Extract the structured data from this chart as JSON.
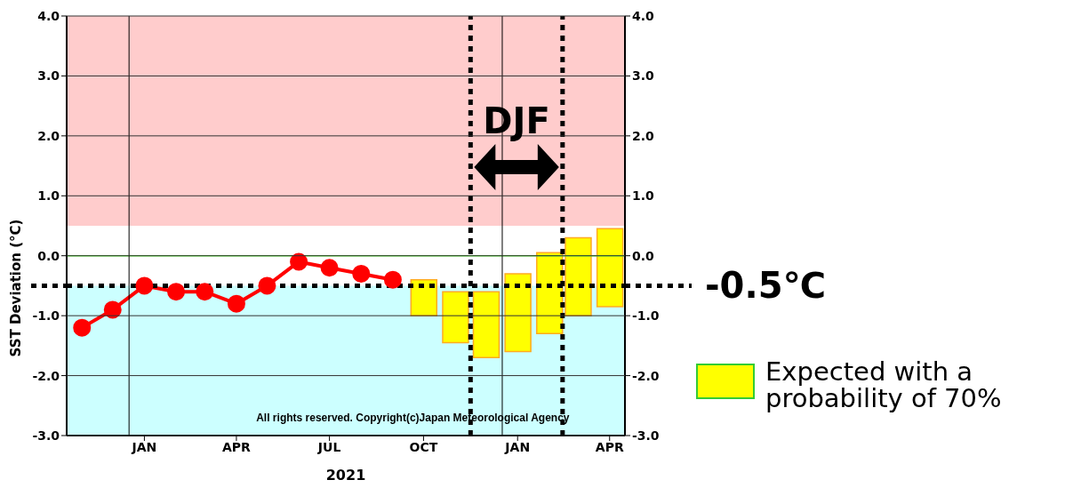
{
  "chart_data": {
    "type": "line",
    "ylabel": "SST Deviation (°C)",
    "xlabel": "2021",
    "xlim": [
      "2020-11-01",
      "2022-05-01"
    ],
    "xticks": [
      {
        "value": "2021-01-16",
        "label": "JAN"
      },
      {
        "value": "2021-04-16",
        "label": "APR"
      },
      {
        "value": "2021-07-16",
        "label": "JUL"
      },
      {
        "value": "2021-10-16",
        "label": "OCT"
      },
      {
        "value": "2022-01-16",
        "label": "JAN"
      },
      {
        "value": "2022-04-16",
        "label": "APR"
      }
    ],
    "ylim": [
      -3,
      4
    ],
    "yticks": [
      {
        "value": -3,
        "label": "-3.0"
      },
      {
        "value": -2,
        "label": "-2.0"
      },
      {
        "value": -1,
        "label": "-1.0"
      },
      {
        "value": 0,
        "label": "0.0"
      },
      {
        "value": 1,
        "label": "1.0"
      },
      {
        "value": 2,
        "label": "2.0"
      },
      {
        "value": 3,
        "label": "3.0"
      },
      {
        "value": 4,
        "label": "4.0"
      }
    ],
    "y2lim": [
      -3,
      4
    ],
    "y2ticks": [
      {
        "value": -3,
        "label": "-3.0"
      },
      {
        "value": -2,
        "label": "-2.0"
      },
      {
        "value": -1,
        "label": "-1.0"
      },
      {
        "value": 0,
        "label": "0.0"
      },
      {
        "value": 1,
        "label": "1.0"
      },
      {
        "value": 2,
        "label": "2.0"
      },
      {
        "value": 3,
        "label": "3.0"
      },
      {
        "value": 4,
        "label": "4.0"
      }
    ],
    "series": [
      {
        "color": "#ff0000",
        "x": [
          "2020-11-16",
          "2020-12-16",
          "2021-01-16",
          "2021-02-16",
          "2021-03-16",
          "2021-04-16",
          "2021-05-16",
          "2021-06-16",
          "2021-07-16",
          "2021-08-16",
          "2021-09-16"
        ],
        "values": [
          -1.2,
          -0.9,
          -0.5,
          -0.6,
          -0.6,
          -0.8,
          -0.5,
          -0.1,
          -0.2,
          -0.3,
          -0.4
        ]
      },
      {
        "type": "bar",
        "name": "Expected with a probability of 70%",
        "color": "#ffff00",
        "x": [
          "2021-10-16",
          "2021-11-16",
          "2021-12-16",
          "2022-01-16",
          "2022-02-16",
          "2022-03-16",
          "2022-04-16"
        ],
        "base": [
          -1.0,
          -1.45,
          -1.7,
          -1.6,
          -1.3,
          -1.0,
          -0.85
        ],
        "values": [
          0.6,
          0.85,
          1.1,
          1.3,
          1.35,
          1.3,
          1.3
        ]
      }
    ],
    "bands": [
      {
        "axis": "y",
        "from": 0.5,
        "to": 4,
        "color": "#ffcccc"
      },
      {
        "axis": "y",
        "from": -3,
        "to": -0.5,
        "color": "#ccffff"
      }
    ],
    "ref_lines": [
      {
        "axis": "y",
        "value": 0,
        "color": "#55ee33",
        "line_style": "solid"
      },
      {
        "axis": "x",
        "value": "2021-01-01",
        "color": "#000000",
        "line_style": "solid"
      },
      {
        "axis": "x",
        "value": "2022-01-01",
        "color": "#000000",
        "line_style": "solid"
      },
      {
        "axis": "x",
        "value": "2021-12-01",
        "color": "#000000",
        "line_style": "dotted"
      },
      {
        "axis": "x",
        "value": "2022-03-01",
        "color": "#000000",
        "line_style": "dotted"
      },
      {
        "axis": "y",
        "value": -0.5,
        "color": "#000000",
        "line_style": "dotted",
        "label": "-0.5℃"
      }
    ],
    "annotations": [
      "DJF",
      "All rights reserved. Copyright(c)Japan Meteorological Agency"
    ],
    "grid": "y",
    "marker": "circle",
    "line_style": "solid",
    "legend": "right"
  }
}
